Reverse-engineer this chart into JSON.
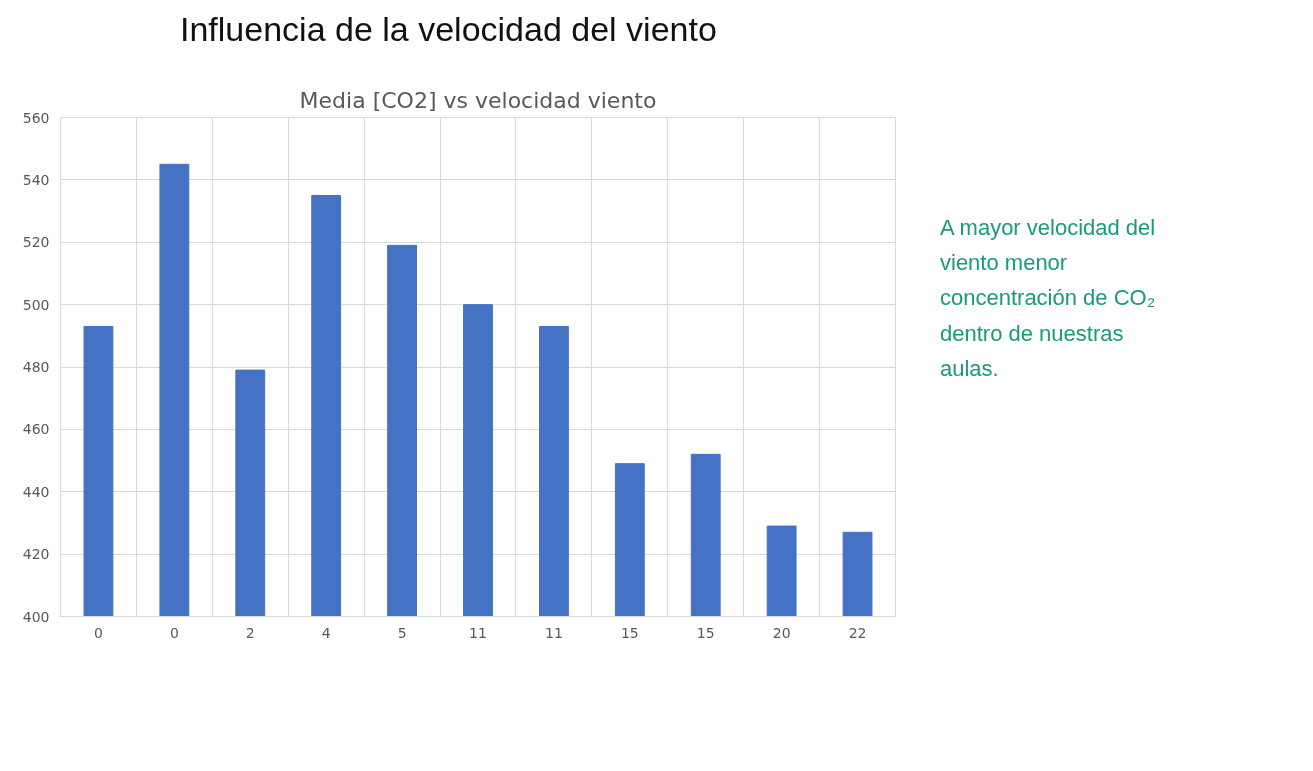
{
  "chart_data": {
    "type": "bar",
    "title": "Influencia de la velocidad del viento",
    "subtitle": "Media [CO2] vs velocidad viento",
    "categories": [
      "0",
      "0",
      "2",
      "4",
      "5",
      "11",
      "11",
      "15",
      "15",
      "20",
      "22"
    ],
    "values": [
      493,
      545,
      479,
      535,
      519,
      500,
      493,
      449,
      452,
      429,
      427
    ],
    "color": "#4472c4",
    "ylim": [
      400,
      560
    ],
    "yticks": [
      400,
      420,
      440,
      460,
      480,
      500,
      520,
      540,
      560
    ],
    "grid": true,
    "annotations": [
      "A mayor velocidad del viento menor concentración de CO₂ dentro de nuestras aulas."
    ]
  }
}
